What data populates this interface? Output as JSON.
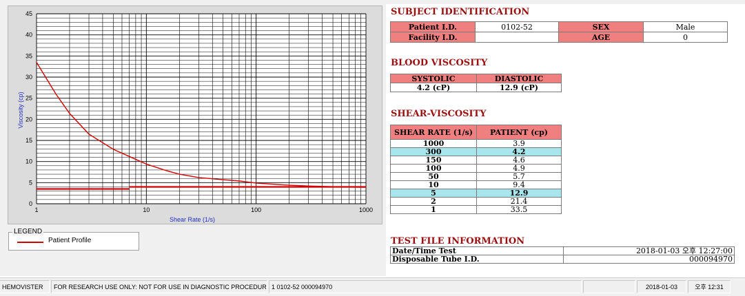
{
  "chart_data": {
    "type": "line",
    "xlabel": "Shear Rate (1/s)",
    "ylabel": "Viscosity (cp)",
    "xscale": "log",
    "xlim": [
      1,
      1000
    ],
    "ylim": [
      0,
      45
    ],
    "x_ticks": [
      "1",
      "10",
      "100",
      "1000"
    ],
    "y_ticks": [
      "0",
      "5",
      "10",
      "15",
      "20",
      "25",
      "30",
      "35",
      "40",
      "45"
    ],
    "grid": true,
    "series": [
      {
        "name": "Patient Profile",
        "color": "#d40000",
        "x": [
          1,
          1.5,
          2,
          3,
          5,
          7,
          10,
          15,
          20,
          30,
          50,
          70,
          100,
          150,
          200,
          300,
          500,
          700,
          1000
        ],
        "y": [
          33.5,
          26.0,
          21.4,
          16.5,
          12.9,
          11.2,
          9.4,
          7.9,
          7.0,
          6.2,
          5.7,
          5.4,
          4.9,
          4.6,
          4.4,
          4.2,
          4.05,
          3.95,
          3.9
        ]
      }
    ],
    "reference_lines": [
      {
        "x": [
          1,
          7
        ],
        "y": [
          3.5,
          3.5
        ]
      },
      {
        "x": [
          7,
          1000
        ],
        "y": [
          4.0,
          4.0
        ]
      }
    ]
  },
  "legend": {
    "title": "LEGEND",
    "label": "Patient Profile"
  },
  "subject": {
    "heading": "SUBJECT IDENTIFICATION",
    "patient_id_label": "Patient I.D.",
    "patient_id": "0102-52",
    "sex_label": "SEX",
    "sex": "Male",
    "facility_label": "Facility I.D.",
    "facility": "",
    "age_label": "AGE",
    "age": "0"
  },
  "blood": {
    "heading": "BLOOD VISCOSITY",
    "systolic_label": "SYSTOLIC",
    "diastolic_label": "DIASTOLIC",
    "systolic": "4.2 (cP)",
    "diastolic": "12.9 (cP)"
  },
  "shear": {
    "heading": "SHEAR-VISCOSITY",
    "col1": "SHEAR RATE (1/s)",
    "col2": "PATIENT (cp)",
    "rows": [
      {
        "rate": "1000",
        "value": "3.9"
      },
      {
        "rate": "300",
        "value": "4.2"
      },
      {
        "rate": "150",
        "value": "4.6"
      },
      {
        "rate": "100",
        "value": "4.9"
      },
      {
        "rate": "50",
        "value": "5.7"
      },
      {
        "rate": "10",
        "value": "9.4"
      },
      {
        "rate": "5",
        "value": "12.9"
      },
      {
        "rate": "2",
        "value": "21.4"
      },
      {
        "rate": "1",
        "value": "33.5"
      }
    ]
  },
  "testfile": {
    "heading": "TEST FILE INFORMATION",
    "datetime_label": "Date/Time Test",
    "datetime": "2018-01-03  오후 12:27:00",
    "tube_label": "Disposable Tube I.D.",
    "tube": "000094970"
  },
  "status": {
    "app": "HEMOVISTER",
    "notice": "FOR RESEARCH USE ONLY: NOT FOR USE IN DIAGNOSTIC PROCEDURES",
    "record": "1  0102-52  000094970",
    "blank": "",
    "date": "2018-01-03",
    "time": "오후 12:31"
  },
  "colors": {
    "heading": "#9a1010",
    "header_cell": "#f08080",
    "highlight_cell": "#a8e6ee",
    "curve": "#d40000"
  }
}
